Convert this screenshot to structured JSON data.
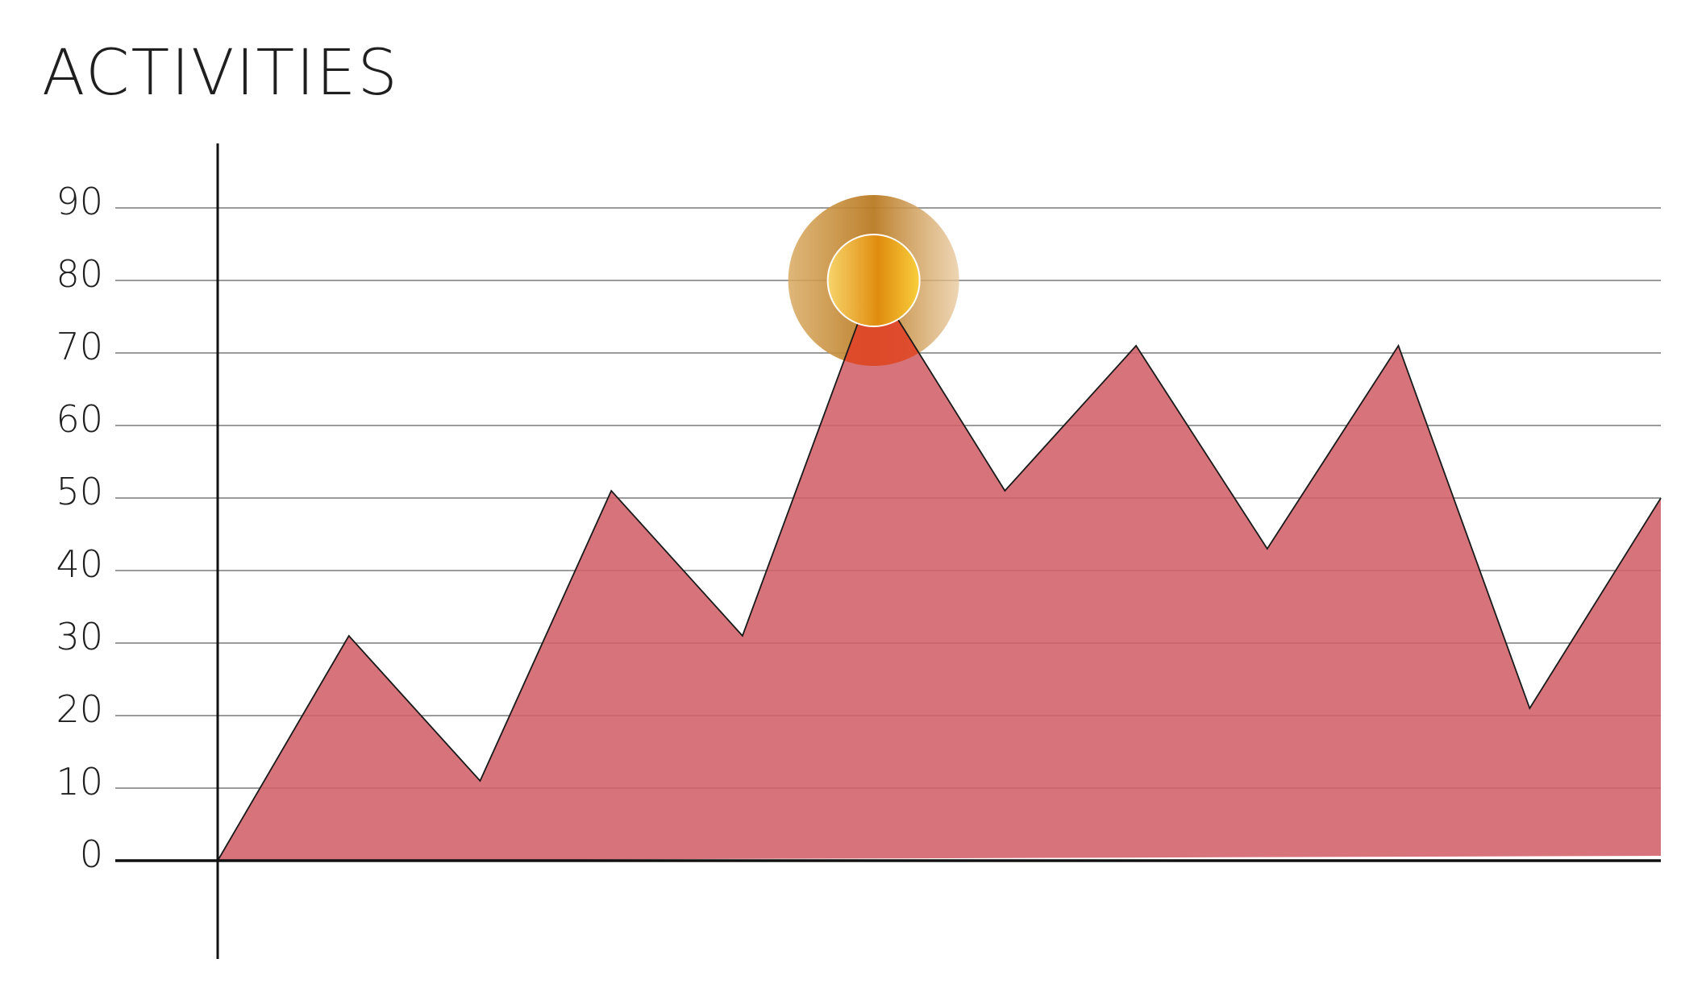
{
  "chart_data": {
    "type": "area",
    "title": "ACTIVITIES",
    "xlabel": "",
    "ylabel": "",
    "ylim": [
      0,
      90
    ],
    "yticks": [
      0,
      10,
      20,
      30,
      40,
      50,
      60,
      70,
      80,
      90
    ],
    "grid": true,
    "x": [
      0,
      1,
      2,
      3,
      4,
      5,
      6,
      7,
      8,
      9,
      10,
      11
    ],
    "series": [
      {
        "values": [
          0,
          31,
          11,
          51,
          31,
          80,
          51,
          71,
          43,
          71,
          21,
          50
        ]
      }
    ],
    "highlight": {
      "index": 5,
      "value": 80
    },
    "colors": {
      "fill": "#d16069",
      "outline": "#1a1a1a",
      "grid": "#7a7a7a",
      "axis": "#111111",
      "highlight_outer": "#c98a2f",
      "highlight_inner": "#f0a21a",
      "peak_tint": "#e0452a"
    }
  }
}
